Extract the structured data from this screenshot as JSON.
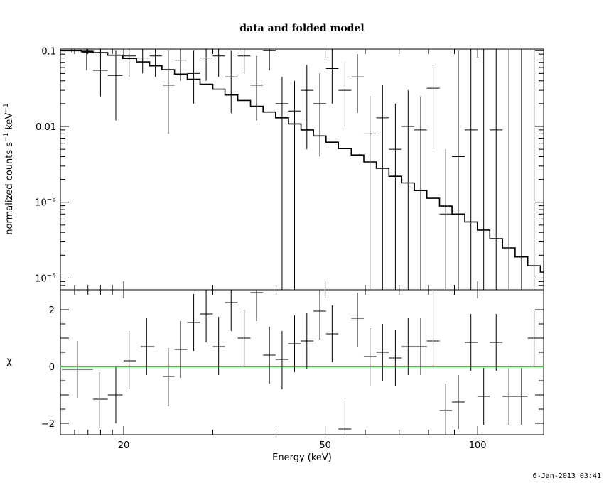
{
  "chart_data": [
    {
      "panel": "top",
      "type": "line",
      "title": "data and folded model",
      "xlabel": "",
      "ylabel_main": "normalized counts s",
      "ylabel_exp1": "−1",
      "ylabel_mid": " keV",
      "ylabel_exp2": "−1",
      "xscale": "log",
      "yscale": "log",
      "xlim": [
        15,
        135
      ],
      "ylim": [
        7e-05,
        0.105
      ],
      "yticks": [
        {
          "value": 0.1,
          "base": "0.1",
          "exp": ""
        },
        {
          "value": 0.01,
          "base": "0.01",
          "exp": ""
        },
        {
          "value": 0.001,
          "base": "10",
          "exp": "−3"
        },
        {
          "value": 0.0001,
          "base": "10",
          "exp": "−4"
        }
      ],
      "data_points": [
        {
          "x": 15.8,
          "xlo": 15.1,
          "xhi": 16.5,
          "y": 0.1,
          "ylo": 0.095,
          "yhi": 0.105
        },
        {
          "x": 16.9,
          "xlo": 16.5,
          "xhi": 17.4,
          "y": 0.095,
          "ylo": 0.055,
          "yhi": 0.105
        },
        {
          "x": 18.0,
          "xlo": 17.4,
          "xhi": 18.6,
          "y": 0.055,
          "ylo": 0.025,
          "yhi": 0.1
        },
        {
          "x": 19.3,
          "xlo": 18.6,
          "xhi": 19.9,
          "y": 0.047,
          "ylo": 0.012,
          "yhi": 0.1
        },
        {
          "x": 20.5,
          "xlo": 20.0,
          "xhi": 21.2,
          "y": 0.085,
          "ylo": 0.045,
          "yhi": 0.105
        },
        {
          "x": 21.8,
          "xlo": 21.2,
          "xhi": 22.5,
          "y": 0.08,
          "ylo": 0.05,
          "yhi": 0.105
        },
        {
          "x": 23.1,
          "xlo": 22.5,
          "xhi": 23.8,
          "y": 0.085,
          "ylo": 0.045,
          "yhi": 0.105
        },
        {
          "x": 24.5,
          "xlo": 23.9,
          "xhi": 25.2,
          "y": 0.035,
          "ylo": 0.008,
          "yhi": 0.1
        },
        {
          "x": 25.9,
          "xlo": 25.2,
          "xhi": 26.7,
          "y": 0.075,
          "ylo": 0.04,
          "yhi": 0.105
        },
        {
          "x": 27.5,
          "xlo": 26.7,
          "xhi": 28.3,
          "y": 0.05,
          "ylo": 0.02,
          "yhi": 0.1
        },
        {
          "x": 29.1,
          "xlo": 28.3,
          "xhi": 30.0,
          "y": 0.08,
          "ylo": 0.04,
          "yhi": 0.105
        },
        {
          "x": 30.8,
          "xlo": 30.0,
          "xhi": 31.7,
          "y": 0.085,
          "ylo": 0.045,
          "yhi": 0.105
        },
        {
          "x": 32.6,
          "xlo": 31.7,
          "xhi": 33.6,
          "y": 0.045,
          "ylo": 0.015,
          "yhi": 0.1
        },
        {
          "x": 34.6,
          "xlo": 33.6,
          "xhi": 35.6,
          "y": 0.085,
          "ylo": 0.05,
          "yhi": 0.105
        },
        {
          "x": 36.6,
          "xlo": 35.6,
          "xhi": 37.7,
          "y": 0.035,
          "ylo": 0.012,
          "yhi": 0.085
        },
        {
          "x": 38.8,
          "xlo": 37.7,
          "xhi": 39.9,
          "y": 0.1,
          "ylo": 0.055,
          "yhi": 0.105
        },
        {
          "x": 41.1,
          "xlo": 39.9,
          "xhi": 42.3,
          "y": 0.02,
          "ylo": 7e-05,
          "yhi": 0.045
        },
        {
          "x": 43.5,
          "xlo": 42.3,
          "xhi": 44.8,
          "y": 0.016,
          "ylo": 7e-05,
          "yhi": 0.04
        },
        {
          "x": 46.0,
          "xlo": 44.8,
          "xhi": 47.4,
          "y": 0.03,
          "ylo": 0.005,
          "yhi": 0.065
        },
        {
          "x": 48.8,
          "xlo": 47.4,
          "xhi": 50.2,
          "y": 0.02,
          "ylo": 0.004,
          "yhi": 0.05
        },
        {
          "x": 51.6,
          "xlo": 50.2,
          "xhi": 53.1,
          "y": 0.058,
          "ylo": 0.02,
          "yhi": 0.105
        },
        {
          "x": 54.7,
          "xlo": 53.1,
          "xhi": 56.3,
          "y": 0.03,
          "ylo": 0.01,
          "yhi": 0.07
        },
        {
          "x": 57.9,
          "xlo": 56.3,
          "xhi": 59.6,
          "y": 0.045,
          "ylo": 0.015,
          "yhi": 0.09
        },
        {
          "x": 61.3,
          "xlo": 59.6,
          "xhi": 63.1,
          "y": 0.008,
          "ylo": 7e-05,
          "yhi": 0.025
        },
        {
          "x": 64.9,
          "xlo": 63.1,
          "xhi": 66.8,
          "y": 0.013,
          "ylo": 7e-05,
          "yhi": 0.035
        },
        {
          "x": 68.8,
          "xlo": 66.8,
          "xhi": 70.8,
          "y": 0.005,
          "ylo": 7e-05,
          "yhi": 0.02
        },
        {
          "x": 72.9,
          "xlo": 70.8,
          "xhi": 75.0,
          "y": 0.01,
          "ylo": 7e-05,
          "yhi": 0.03
        },
        {
          "x": 77.2,
          "xlo": 75.0,
          "xhi": 79.4,
          "y": 0.009,
          "ylo": 7e-05,
          "yhi": 0.025
        },
        {
          "x": 81.7,
          "xlo": 79.4,
          "xhi": 84.1,
          "y": 0.032,
          "ylo": 0.005,
          "yhi": 0.06
        },
        {
          "x": 86.5,
          "xlo": 84.1,
          "xhi": 89.0,
          "y": 0.0007,
          "ylo": 7e-05,
          "yhi": 0.005
        },
        {
          "x": 91.6,
          "xlo": 89.0,
          "xhi": 94.3,
          "y": 0.004,
          "ylo": 7e-05,
          "yhi": 0.1
        },
        {
          "x": 97.0,
          "xlo": 94.3,
          "xhi": 99.9,
          "y": 0.009,
          "ylo": 7e-05,
          "yhi": 0.105
        },
        {
          "x": 102.8,
          "xlo": 99.9,
          "xhi": 105.7,
          "y": 7e-05,
          "ylo": 7e-05,
          "yhi": 0.105
        },
        {
          "x": 108.8,
          "xlo": 105.7,
          "xhi": 112.0,
          "y": 0.009,
          "ylo": 7e-05,
          "yhi": 0.105
        },
        {
          "x": 115.3,
          "xlo": 112.0,
          "xhi": 118.6,
          "y": 7e-05,
          "ylo": 7e-05,
          "yhi": 0.105
        },
        {
          "x": 122.1,
          "xlo": 118.6,
          "xhi": 125.6,
          "y": 7e-05,
          "ylo": 7e-05,
          "yhi": 0.105
        },
        {
          "x": 129.3,
          "xlo": 125.6,
          "xhi": 133.0,
          "y": 7e-05,
          "ylo": 7e-05,
          "yhi": 0.105
        }
      ],
      "model_steps": [
        {
          "x0": 15.0,
          "x1": 16.5,
          "y": 0.1
        },
        {
          "x0": 16.5,
          "x1": 17.4,
          "y": 0.098
        },
        {
          "x0": 17.4,
          "x1": 18.6,
          "y": 0.094
        },
        {
          "x0": 18.6,
          "x1": 19.9,
          "y": 0.087
        },
        {
          "x0": 19.9,
          "x1": 21.2,
          "y": 0.079
        },
        {
          "x0": 21.2,
          "x1": 22.5,
          "y": 0.071
        },
        {
          "x0": 22.5,
          "x1": 23.8,
          "y": 0.063
        },
        {
          "x0": 23.8,
          "x1": 25.2,
          "y": 0.056
        },
        {
          "x0": 25.2,
          "x1": 26.7,
          "y": 0.049
        },
        {
          "x0": 26.7,
          "x1": 28.3,
          "y": 0.042
        },
        {
          "x0": 28.3,
          "x1": 30.0,
          "y": 0.036
        },
        {
          "x0": 30.0,
          "x1": 31.7,
          "y": 0.031
        },
        {
          "x0": 31.7,
          "x1": 33.6,
          "y": 0.026
        },
        {
          "x0": 33.6,
          "x1": 35.6,
          "y": 0.022
        },
        {
          "x0": 35.6,
          "x1": 37.7,
          "y": 0.0185
        },
        {
          "x0": 37.7,
          "x1": 39.9,
          "y": 0.0155
        },
        {
          "x0": 39.9,
          "x1": 42.3,
          "y": 0.013
        },
        {
          "x0": 42.3,
          "x1": 44.8,
          "y": 0.0108
        },
        {
          "x0": 44.8,
          "x1": 47.4,
          "y": 0.009
        },
        {
          "x0": 47.4,
          "x1": 50.2,
          "y": 0.0075
        },
        {
          "x0": 50.2,
          "x1": 53.1,
          "y": 0.0062
        },
        {
          "x0": 53.1,
          "x1": 56.3,
          "y": 0.0051
        },
        {
          "x0": 56.3,
          "x1": 59.6,
          "y": 0.0042
        },
        {
          "x0": 59.6,
          "x1": 63.1,
          "y": 0.0034
        },
        {
          "x0": 63.1,
          "x1": 66.8,
          "y": 0.0028
        },
        {
          "x0": 66.8,
          "x1": 70.8,
          "y": 0.0022
        },
        {
          "x0": 70.8,
          "x1": 75.0,
          "y": 0.0018
        },
        {
          "x0": 75.0,
          "x1": 79.4,
          "y": 0.00143
        },
        {
          "x0": 79.4,
          "x1": 84.1,
          "y": 0.00113
        },
        {
          "x0": 84.1,
          "x1": 89.0,
          "y": 0.00089
        },
        {
          "x0": 89.0,
          "x1": 94.3,
          "y": 0.0007
        },
        {
          "x0": 94.3,
          "x1": 99.9,
          "y": 0.00055
        },
        {
          "x0": 99.9,
          "x1": 105.7,
          "y": 0.00043
        },
        {
          "x0": 105.7,
          "x1": 112.0,
          "y": 0.00033
        },
        {
          "x0": 112.0,
          "x1": 118.6,
          "y": 0.00025
        },
        {
          "x0": 118.6,
          "x1": 125.6,
          "y": 0.00019
        },
        {
          "x0": 125.6,
          "x1": 133.0,
          "y": 0.000145
        },
        {
          "x0": 133.0,
          "x1": 135.0,
          "y": 0.00012
        }
      ]
    },
    {
      "panel": "bottom",
      "type": "scatter",
      "xlabel": "Energy (keV)",
      "ylabel": "χ",
      "xscale": "log",
      "yscale": "linear",
      "xlim": [
        15,
        135
      ],
      "ylim": [
        -2.4,
        2.7
      ],
      "xticks": [
        {
          "value": 20,
          "label": "20"
        },
        {
          "value": 50,
          "label": "50"
        },
        {
          "value": 100,
          "label": "100"
        }
      ],
      "yticks": [
        {
          "value": 2,
          "label": "2"
        },
        {
          "value": 0,
          "label": "0"
        },
        {
          "value": -2,
          "label": "−2"
        }
      ],
      "zero_line_color": "#33cc33",
      "residuals": [
        {
          "x": 16.2,
          "xlo": 15.1,
          "xhi": 17.4,
          "y": -0.1,
          "ylo": -1.1,
          "yhi": 0.9
        },
        {
          "x": 17.9,
          "xlo": 17.4,
          "xhi": 18.6,
          "y": -1.15,
          "ylo": -2.15,
          "yhi": -0.2
        },
        {
          "x": 19.3,
          "xlo": 18.6,
          "xhi": 19.9,
          "y": -1.0,
          "ylo": -2.0,
          "yhi": 0.0
        },
        {
          "x": 20.5,
          "xlo": 20.0,
          "xhi": 21.2,
          "y": 0.2,
          "ylo": -0.8,
          "yhi": 1.25
        },
        {
          "x": 22.2,
          "xlo": 21.6,
          "xhi": 23.0,
          "y": 0.7,
          "ylo": -0.3,
          "yhi": 1.7
        },
        {
          "x": 24.5,
          "xlo": 23.9,
          "xhi": 25.2,
          "y": -0.35,
          "ylo": -1.4,
          "yhi": 0.65
        },
        {
          "x": 25.9,
          "xlo": 25.2,
          "xhi": 26.7,
          "y": 0.6,
          "ylo": -0.4,
          "yhi": 1.6
        },
        {
          "x": 27.5,
          "xlo": 26.7,
          "xhi": 28.3,
          "y": 1.55,
          "ylo": 0.55,
          "yhi": 2.55
        },
        {
          "x": 29.1,
          "xlo": 28.3,
          "xhi": 30.0,
          "y": 1.85,
          "ylo": 0.85,
          "yhi": 2.7
        },
        {
          "x": 30.8,
          "xlo": 30.0,
          "xhi": 31.7,
          "y": 0.7,
          "ylo": -0.3,
          "yhi": 1.75
        },
        {
          "x": 32.6,
          "xlo": 31.7,
          "xhi": 33.6,
          "y": 2.25,
          "ylo": 1.25,
          "yhi": 2.7
        },
        {
          "x": 34.6,
          "xlo": 33.6,
          "xhi": 35.6,
          "y": 1.0,
          "ylo": 0.0,
          "yhi": 2.0
        },
        {
          "x": 36.6,
          "xlo": 35.6,
          "xhi": 37.7,
          "y": 2.6,
          "ylo": 1.6,
          "yhi": 2.7
        },
        {
          "x": 38.8,
          "xlo": 37.7,
          "xhi": 39.9,
          "y": 0.4,
          "ylo": -0.6,
          "yhi": 1.4
        },
        {
          "x": 41.1,
          "xlo": 39.9,
          "xhi": 42.3,
          "y": 0.25,
          "ylo": -0.8,
          "yhi": 1.25
        },
        {
          "x": 43.5,
          "xlo": 42.3,
          "xhi": 44.8,
          "y": 0.8,
          "ylo": -0.2,
          "yhi": 1.8
        },
        {
          "x": 46.0,
          "xlo": 44.8,
          "xhi": 47.4,
          "y": 0.9,
          "ylo": -0.1,
          "yhi": 1.9
        },
        {
          "x": 48.8,
          "xlo": 47.4,
          "xhi": 50.2,
          "y": 1.95,
          "ylo": 0.95,
          "yhi": 2.7
        },
        {
          "x": 51.6,
          "xlo": 50.2,
          "xhi": 53.1,
          "y": 1.15,
          "ylo": 0.15,
          "yhi": 2.15
        },
        {
          "x": 54.7,
          "xlo": 53.1,
          "xhi": 56.3,
          "y": -2.2,
          "ylo": -2.4,
          "yhi": -1.2
        },
        {
          "x": 57.9,
          "xlo": 56.3,
          "xhi": 59.6,
          "y": 1.7,
          "ylo": 0.7,
          "yhi": 2.6
        },
        {
          "x": 61.3,
          "xlo": 59.6,
          "xhi": 63.1,
          "y": 0.35,
          "ylo": -0.7,
          "yhi": 1.35
        },
        {
          "x": 64.9,
          "xlo": 63.1,
          "xhi": 66.8,
          "y": 0.5,
          "ylo": -0.5,
          "yhi": 1.5
        },
        {
          "x": 68.8,
          "xlo": 66.8,
          "xhi": 70.8,
          "y": 0.3,
          "ylo": -0.7,
          "yhi": 1.3
        },
        {
          "x": 72.9,
          "xlo": 70.8,
          "xhi": 75.0,
          "y": 0.7,
          "ylo": -0.3,
          "yhi": 1.7
        },
        {
          "x": 77.2,
          "xlo": 75.0,
          "xhi": 79.4,
          "y": 0.7,
          "ylo": -0.3,
          "yhi": 1.7
        },
        {
          "x": 81.7,
          "xlo": 79.4,
          "xhi": 84.1,
          "y": 0.9,
          "ylo": -0.1,
          "yhi": 2.7
        },
        {
          "x": 86.5,
          "xlo": 84.1,
          "xhi": 89.0,
          "y": -1.55,
          "ylo": -2.4,
          "yhi": -0.6
        },
        {
          "x": 91.6,
          "xlo": 89.0,
          "xhi": 94.3,
          "y": -1.25,
          "ylo": -2.2,
          "yhi": -0.3
        },
        {
          "x": 97.0,
          "xlo": 94.3,
          "xhi": 99.9,
          "y": 0.85,
          "ylo": -0.15,
          "yhi": 1.85
        },
        {
          "x": 102.8,
          "xlo": 99.9,
          "xhi": 105.7,
          "y": -1.05,
          "ylo": -2.05,
          "yhi": -0.05
        },
        {
          "x": 108.8,
          "xlo": 105.7,
          "xhi": 112.0,
          "y": 0.85,
          "ylo": -0.15,
          "yhi": 1.85
        },
        {
          "x": 115.3,
          "xlo": 112.0,
          "xhi": 118.6,
          "y": -1.05,
          "ylo": -2.05,
          "yhi": -0.05
        },
        {
          "x": 122.1,
          "xlo": 118.6,
          "xhi": 125.6,
          "y": -1.05,
          "ylo": -2.05,
          "yhi": -0.05
        },
        {
          "x": 129.3,
          "xlo": 125.6,
          "xhi": 133.0,
          "y": 1.0,
          "ylo": 0.0,
          "yhi": 2.0
        }
      ]
    }
  ],
  "footer": {
    "timestamp": "6-Jan-2013 03:41"
  }
}
